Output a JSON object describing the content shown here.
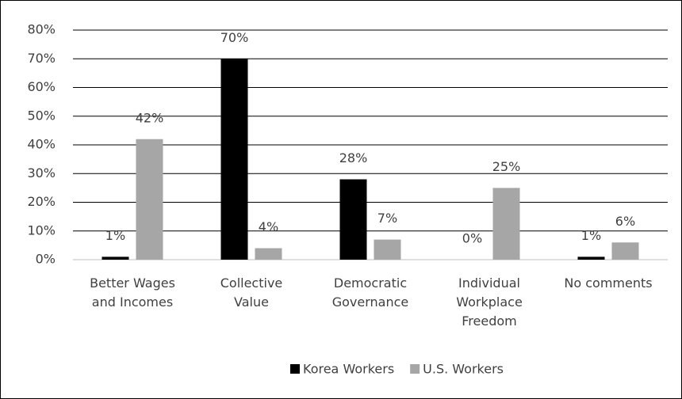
{
  "chart_data": {
    "type": "bar",
    "categories": [
      "Better Wages and Incomes",
      "Collective Value",
      "Democratic Governance",
      "Individual Workplace Freedom",
      "No comments"
    ],
    "series": [
      {
        "name": "Korea Workers",
        "color": "#000000",
        "values": [
          1,
          70,
          28,
          0,
          1
        ],
        "value_labels": [
          "1%",
          "70%",
          "28%",
          "0%",
          "1%"
        ]
      },
      {
        "name": "U.S. Workers",
        "color": "#a6a6a6",
        "values": [
          42,
          4,
          7,
          25,
          6
        ],
        "value_labels": [
          "42%",
          "4%",
          "7%",
          "25%",
          "6%"
        ]
      }
    ],
    "ylim": [
      0,
      80
    ],
    "yticks": [
      {
        "value": 0,
        "label": "0%"
      },
      {
        "value": 10,
        "label": "10%"
      },
      {
        "value": 20,
        "label": "20%"
      },
      {
        "value": 30,
        "label": "30%"
      },
      {
        "value": 40,
        "label": "40%"
      },
      {
        "value": 50,
        "label": "50%"
      },
      {
        "value": 60,
        "label": "60%"
      },
      {
        "value": 70,
        "label": "70%"
      },
      {
        "value": 80,
        "label": "80%"
      }
    ],
    "grid": true,
    "legend": "bottom"
  }
}
